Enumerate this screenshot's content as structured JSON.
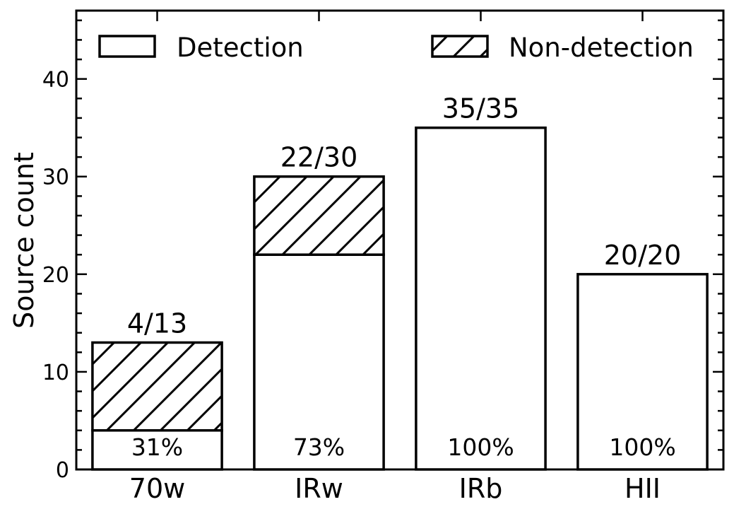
{
  "chart_data": {
    "type": "bar",
    "stacked": true,
    "categories": [
      "70w",
      "IRw",
      "IRb",
      "HII"
    ],
    "series": [
      {
        "name": "Detection",
        "values": [
          4,
          22,
          35,
          20
        ],
        "pattern": "none"
      },
      {
        "name": "Non-detection",
        "values": [
          9,
          8,
          0,
          0
        ],
        "pattern": "hatch"
      }
    ],
    "ratio_labels": [
      "4/13",
      "22/30",
      "35/35",
      "20/20"
    ],
    "percent_labels": [
      "31%",
      "73%",
      "100%",
      "100%"
    ],
    "ylabel": "Source count",
    "xlabel": "",
    "ylim": [
      0,
      47
    ],
    "yticks": [
      0,
      10,
      20,
      30,
      40
    ],
    "y_minor_step": 2,
    "legend_placement": "top",
    "grid": false,
    "colors": {
      "bar_fill": "#ffffff",
      "edge": "#000000"
    }
  }
}
